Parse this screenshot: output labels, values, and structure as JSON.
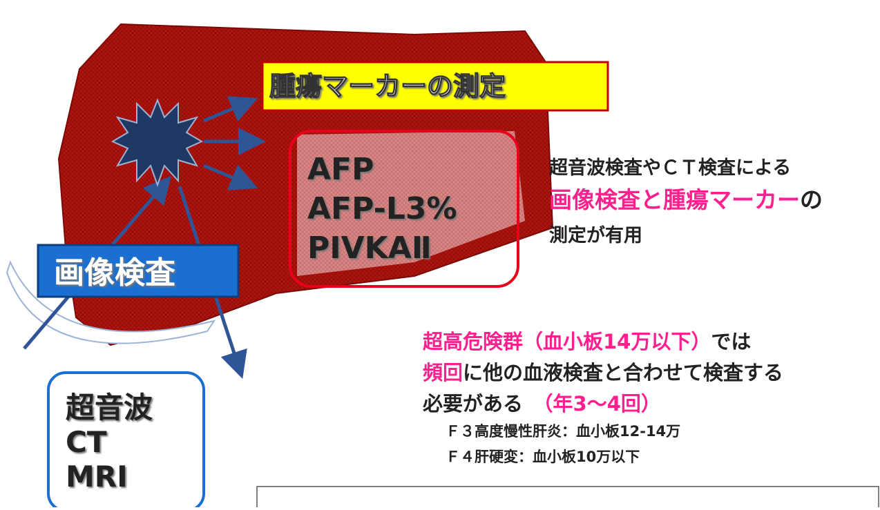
{
  "marker_title": "腫瘍マーカーの測定",
  "markers": [
    "AFP",
    "AFP-L3%",
    "PIVKAⅡ"
  ],
  "imaging_label": "画像検査",
  "imaging_methods": [
    "超音波",
    "CT",
    "MRI"
  ],
  "summary": [
    [
      {
        "text": "超音波検査やＣＴ検査による",
        "color": "#222222"
      }
    ],
    [
      {
        "text": "画像検査と腫瘍マーカー",
        "color": "#ff1f8e"
      },
      {
        "text": "の",
        "color": "#222222"
      }
    ],
    [
      {
        "text": "測定が有用",
        "color": "#222222"
      }
    ]
  ],
  "high_risk": [
    [
      {
        "text": "超高危険群（血小板14万以下）",
        "color": "#ff1f8e"
      },
      {
        "text": "では",
        "color": "#222222"
      }
    ],
    [
      {
        "text": "頻回",
        "color": "#ff1f8e"
      },
      {
        "text": "に他の血液検査と合わせて検査する",
        "color": "#222222"
      }
    ],
    [
      {
        "text": "必要がある　",
        "color": "#222222"
      },
      {
        "text": "（年3～4回）",
        "color": "#ff1f8e"
      }
    ]
  ],
  "notes": [
    "Ｆ３高度慢性肝炎：血小板12-14万",
    "Ｆ４肝硬変：血小板10万以下"
  ]
}
